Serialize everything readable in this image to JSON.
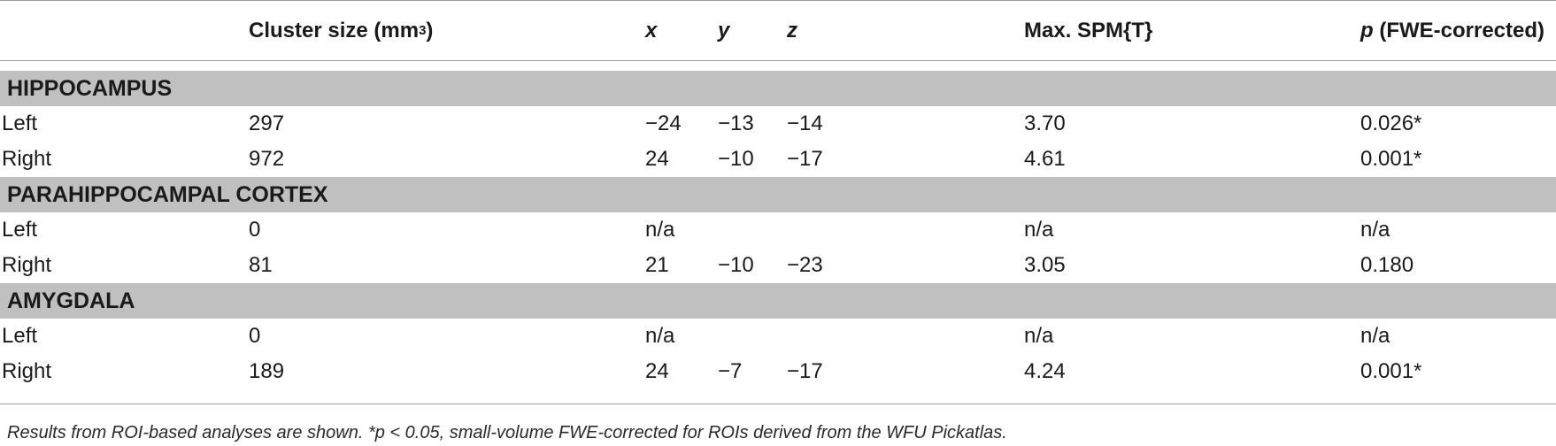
{
  "table": {
    "headers": {
      "label": "",
      "cluster_size_prefix": "Cluster size (mm",
      "cluster_size_sup": "3",
      "cluster_size_suffix": ")",
      "x": "x",
      "y": "y",
      "z": "z",
      "max_spm": "Max. SPM{T}",
      "p_italic": "p",
      "p_rest": " (FWE-corrected)"
    },
    "sections": [
      {
        "title": "HIPPOCAMPUS",
        "rows": [
          {
            "label": "Left",
            "size": "297",
            "x": "−24",
            "y": "−13",
            "z": "−14",
            "spm": "3.70",
            "p": "0.026*"
          },
          {
            "label": "Right",
            "size": "972",
            "x": "24",
            "y": "−10",
            "z": "−17",
            "spm": "4.61",
            "p": "0.001*"
          }
        ]
      },
      {
        "title": "PARAHIPPOCAMPAL CORTEX",
        "rows": [
          {
            "label": "Left",
            "size": "0",
            "x": "n/a",
            "y": "",
            "z": "",
            "spm": "n/a",
            "p": "n/a"
          },
          {
            "label": "Right",
            "size": "81",
            "x": "21",
            "y": "−10",
            "z": "−23",
            "spm": "3.05",
            "p": "0.180"
          }
        ]
      },
      {
        "title": "AMYGDALA",
        "rows": [
          {
            "label": "Left",
            "size": "0",
            "x": "n/a",
            "y": "",
            "z": "",
            "spm": "n/a",
            "p": "n/a"
          },
          {
            "label": "Right",
            "size": "189",
            "x": "24",
            "y": "−7",
            "z": "−17",
            "spm": "4.24",
            "p": "0.001*"
          }
        ]
      }
    ]
  },
  "footnote": "Results from ROI-based analyses are shown. *p < 0.05, small-volume FWE-corrected for ROIs derived from the WFU Pickatlas."
}
